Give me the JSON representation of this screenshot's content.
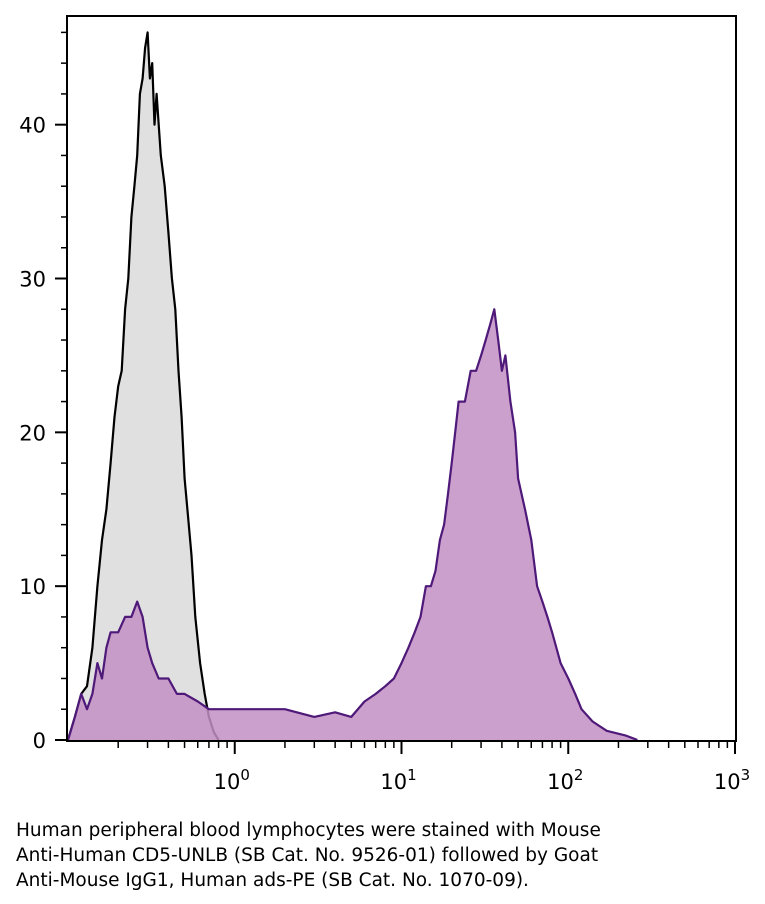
{
  "chart_data": {
    "type": "area",
    "xscale": "log",
    "xlim": [
      0.1,
      1000
    ],
    "ylim": [
      0,
      47
    ],
    "x_ticks": [
      {
        "value": 1,
        "base": "10",
        "exp": "0"
      },
      {
        "value": 10,
        "base": "10",
        "exp": "1"
      },
      {
        "value": 100,
        "base": "10",
        "exp": "2"
      },
      {
        "value": 1000,
        "base": "10",
        "exp": "3"
      }
    ],
    "y_ticks": [
      0,
      10,
      20,
      30,
      40
    ],
    "grid": false,
    "series": [
      {
        "fill": "#e0e0e0",
        "stroke": "#000000",
        "points": [
          [
            0.1,
            0
          ],
          [
            0.11,
            1.5
          ],
          [
            0.12,
            3
          ],
          [
            0.13,
            3.5
          ],
          [
            0.14,
            6
          ],
          [
            0.15,
            10
          ],
          [
            0.16,
            13
          ],
          [
            0.17,
            15
          ],
          [
            0.18,
            18
          ],
          [
            0.19,
            21
          ],
          [
            0.2,
            23
          ],
          [
            0.21,
            24
          ],
          [
            0.22,
            28
          ],
          [
            0.23,
            30
          ],
          [
            0.24,
            34
          ],
          [
            0.25,
            36
          ],
          [
            0.26,
            38
          ],
          [
            0.27,
            42
          ],
          [
            0.28,
            43
          ],
          [
            0.29,
            45
          ],
          [
            0.3,
            46
          ],
          [
            0.31,
            43
          ],
          [
            0.32,
            44
          ],
          [
            0.33,
            40
          ],
          [
            0.34,
            42
          ],
          [
            0.36,
            38
          ],
          [
            0.38,
            36
          ],
          [
            0.4,
            33
          ],
          [
            0.42,
            30
          ],
          [
            0.44,
            28
          ],
          [
            0.46,
            24
          ],
          [
            0.48,
            21
          ],
          [
            0.5,
            17
          ],
          [
            0.52,
            15
          ],
          [
            0.55,
            12
          ],
          [
            0.58,
            8
          ],
          [
            0.62,
            5
          ],
          [
            0.66,
            3
          ],
          [
            0.7,
            1.5
          ],
          [
            0.75,
            0.5
          ],
          [
            0.8,
            0
          ]
        ]
      },
      {
        "fill": "#c38fc4",
        "stroke": "#4e1978",
        "points": [
          [
            0.1,
            0
          ],
          [
            0.11,
            1.5
          ],
          [
            0.12,
            3
          ],
          [
            0.13,
            2
          ],
          [
            0.14,
            3
          ],
          [
            0.15,
            5
          ],
          [
            0.16,
            4
          ],
          [
            0.17,
            6
          ],
          [
            0.18,
            7
          ],
          [
            0.2,
            7
          ],
          [
            0.22,
            8
          ],
          [
            0.24,
            8
          ],
          [
            0.26,
            9
          ],
          [
            0.28,
            8
          ],
          [
            0.3,
            6
          ],
          [
            0.32,
            5
          ],
          [
            0.35,
            4
          ],
          [
            0.4,
            4
          ],
          [
            0.45,
            3
          ],
          [
            0.5,
            3
          ],
          [
            0.6,
            2.5
          ],
          [
            0.7,
            2
          ],
          [
            0.8,
            2
          ],
          [
            1,
            2
          ],
          [
            1.5,
            2
          ],
          [
            2,
            2
          ],
          [
            3,
            1.5
          ],
          [
            4,
            1.8
          ],
          [
            5,
            1.5
          ],
          [
            6,
            2.5
          ],
          [
            7,
            3
          ],
          [
            8,
            3.5
          ],
          [
            9,
            4
          ],
          [
            10,
            5
          ],
          [
            11,
            6
          ],
          [
            12,
            7
          ],
          [
            13,
            8
          ],
          [
            14,
            10
          ],
          [
            15,
            10
          ],
          [
            16,
            11
          ],
          [
            17,
            13
          ],
          [
            18,
            14
          ],
          [
            19,
            16
          ],
          [
            20,
            18
          ],
          [
            21,
            20
          ],
          [
            22,
            22
          ],
          [
            24,
            22
          ],
          [
            26,
            24
          ],
          [
            28,
            24
          ],
          [
            30,
            25
          ],
          [
            32,
            26
          ],
          [
            34,
            27
          ],
          [
            36,
            28
          ],
          [
            38,
            26
          ],
          [
            40,
            24
          ],
          [
            42,
            25
          ],
          [
            45,
            22
          ],
          [
            48,
            20
          ],
          [
            50,
            17
          ],
          [
            55,
            15
          ],
          [
            60,
            13
          ],
          [
            65,
            10
          ],
          [
            70,
            9
          ],
          [
            75,
            8
          ],
          [
            80,
            7
          ],
          [
            90,
            5
          ],
          [
            100,
            4
          ],
          [
            110,
            3
          ],
          [
            120,
            2
          ],
          [
            140,
            1.2
          ],
          [
            170,
            0.6
          ],
          [
            220,
            0.3
          ],
          [
            260,
            0
          ]
        ]
      }
    ]
  },
  "caption": {
    "line1": "Human peripheral blood lymphocytes were stained with Mouse",
    "line2": "Anti-Human CD5-UNLB (SB Cat. No. 9526-01) followed by Goat",
    "line3": "Anti-Mouse IgG1, Human ads-PE (SB Cat. No. 1070-09)."
  }
}
